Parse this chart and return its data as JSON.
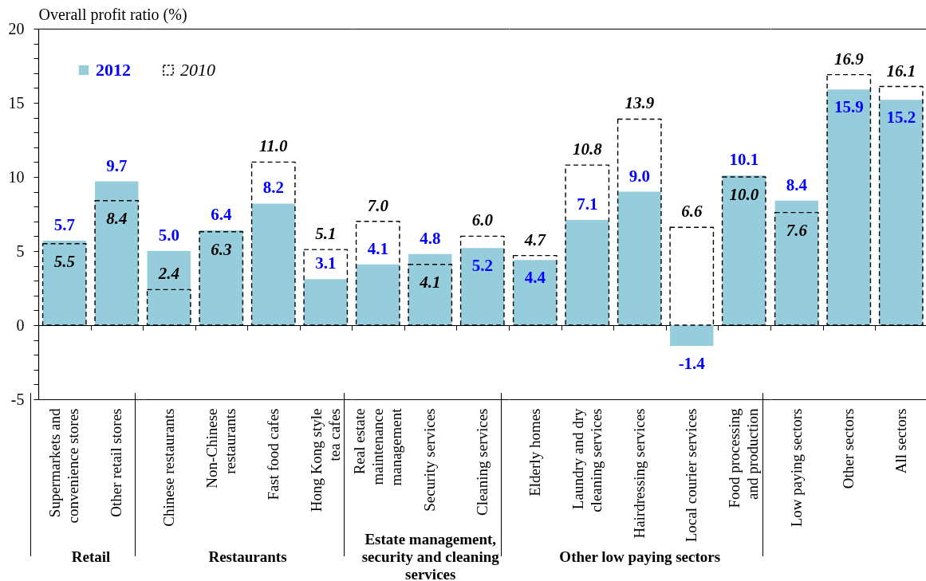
{
  "chart_data": [
    {
      "type": "bar",
      "categories": [
        "Supermarkets and convenience stores",
        "Other retail stores"
      ],
      "series": [
        {
          "name": "2012",
          "color": "#96cddc",
          "values": [
            5.7,
            9.7
          ],
          "value_labels": [
            "5.7",
            "9.7"
          ]
        },
        {
          "name": "2010",
          "color": "#000000",
          "line_style": "dashed",
          "values": [
            5.5,
            8.4
          ],
          "value_labels": [
            "5.5",
            "8.4"
          ]
        }
      ],
      "xlabel": "Retail",
      "ylabel": "Overall profit ratio (%)",
      "ylim": [
        -5,
        20
      ],
      "yticks": [
        -5,
        {
          "value": -4,
          "label": null
        },
        {
          "value": -3,
          "label": null
        },
        {
          "value": -2,
          "label": null
        },
        {
          "value": -1,
          "label": null
        },
        0,
        {
          "value": 1,
          "label": null
        },
        {
          "value": 2,
          "label": null
        },
        {
          "value": 3,
          "label": null
        },
        {
          "value": 4,
          "label": null
        },
        5,
        {
          "value": 6,
          "label": null
        },
        {
          "value": 7,
          "label": null
        },
        {
          "value": 8,
          "label": null
        },
        {
          "value": 9,
          "label": null
        },
        10,
        {
          "value": 11,
          "label": null
        },
        {
          "value": 12,
          "label": null
        },
        {
          "value": 13,
          "label": null
        },
        {
          "value": 14,
          "label": null
        },
        15,
        {
          "value": 16,
          "label": null
        },
        {
          "value": 17,
          "label": null
        },
        {
          "value": 18,
          "label": null
        },
        {
          "value": 19,
          "label": null
        },
        20
      ],
      "legend": "top right"
    },
    {
      "type": "bar",
      "categories": [
        "Chinese restaurants",
        "Non-Chinese restaurants",
        "Fast food cafes",
        "Hong Kong style tea cafes"
      ],
      "series": [
        {
          "color": "#96cddc",
          "values": [
            5.0,
            6.4,
            8.2,
            3.1
          ],
          "value_labels": [
            "5.0",
            "6.4",
            "8.2",
            "3.1"
          ]
        },
        {
          "color": "#000000",
          "line_style": "dashed",
          "values": [
            2.4,
            6.3,
            11.0,
            5.1
          ],
          "value_labels": [
            "2.4",
            "6.3",
            "11.0",
            "5.1"
          ]
        }
      ],
      "xlabel": "Restaurants",
      "ylim": [
        -5,
        20
      ],
      "tick_labels": "x"
    },
    {
      "type": "bar",
      "categories": [
        "Real estate maintenance management",
        "Security services",
        "Cleaning services"
      ],
      "series": [
        {
          "color": "#96cddc",
          "values": [
            4.1,
            4.8,
            5.2
          ],
          "value_labels": [
            "4.1",
            "4.8",
            "5.2"
          ]
        },
        {
          "color": "#000000",
          "line_style": "dashed",
          "values": [
            7.0,
            4.1,
            6.0
          ],
          "value_labels": [
            "7.0",
            "4.1",
            "6.0"
          ]
        }
      ],
      "xlabel": "Estate management, security and cleaning services",
      "ylim": [
        -5,
        20
      ],
      "tick_labels": "x"
    },
    {
      "type": "bar",
      "categories": [
        "Elderly homes",
        "Laundry and dry cleaning services",
        "Hairdressing services",
        "Local courier services",
        "Food processing and production"
      ],
      "series": [
        {
          "color": "#96cddc",
          "values": [
            4.4,
            7.1,
            9.0,
            -1.4,
            10.1
          ],
          "value_labels": [
            "4.4",
            "7.1",
            "9.0",
            "-1.4",
            "10.1"
          ]
        },
        {
          "color": "#000000",
          "line_style": "dashed",
          "values": [
            4.7,
            10.8,
            13.9,
            6.6,
            10.0
          ],
          "value_labels": [
            "4.7",
            "10.8",
            "13.9",
            "6.6",
            "10.0"
          ]
        }
      ],
      "xlabel": "Other low paying sectors",
      "ylim": [
        -5,
        20
      ],
      "tick_labels": "x"
    },
    {
      "type": "bar",
      "categories": [
        "Low paying sectors",
        "Other sectors",
        "All sectors"
      ],
      "series": [
        {
          "color": "#96cddc",
          "values": [
            8.4,
            15.9,
            15.2
          ],
          "value_labels": [
            "8.4",
            "15.9",
            "15.2"
          ]
        },
        {
          "color": "#000000",
          "line_style": "dashed",
          "values": [
            7.6,
            16.9,
            16.1
          ],
          "value_labels": [
            "7.6",
            "16.9",
            "16.1"
          ]
        }
      ],
      "ylim": [
        -5,
        20
      ],
      "tick_labels": "x"
    }
  ]
}
